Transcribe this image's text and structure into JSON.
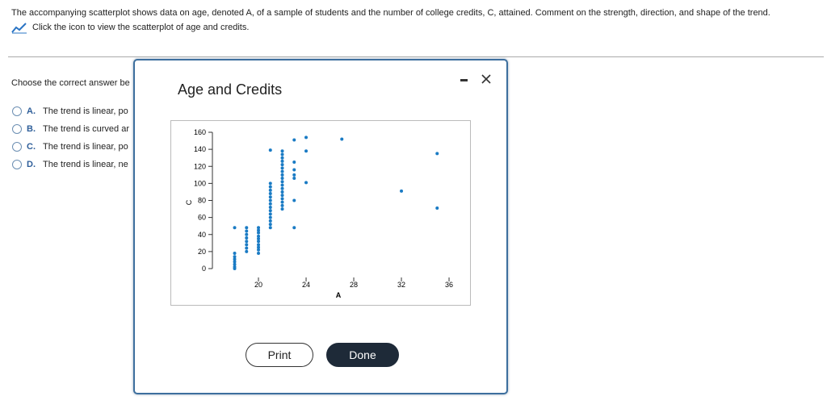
{
  "header": {
    "prompt": "The accompanying scatterplot shows data on age, denoted A, of a sample of students and the number of college credits, C, attained. Comment on the strength, direction, and shape of the trend.",
    "link": "Click the icon to view the scatterplot of age and credits."
  },
  "question": {
    "instruction": "Choose the correct answer be",
    "options": [
      {
        "letter": "A.",
        "text": "The trend is linear, po"
      },
      {
        "letter": "B.",
        "text": "The trend is curved ar"
      },
      {
        "letter": "C.",
        "text": "The trend is linear, po"
      },
      {
        "letter": "D.",
        "text": "The trend is linear, ne"
      }
    ]
  },
  "dialog": {
    "title": "Age and Credits",
    "buttons": [
      "Print",
      "Done"
    ]
  },
  "chart_data": {
    "type": "scatter",
    "xlabel": "A",
    "ylabel": "C",
    "color": "#1a7bc4",
    "x": [
      18,
      18,
      18,
      18,
      18,
      18,
      18,
      18,
      19,
      19,
      19,
      19,
      19,
      19,
      19,
      19,
      20,
      20,
      20,
      20,
      20,
      20,
      20,
      20,
      20,
      20,
      21,
      21,
      21,
      21,
      21,
      21,
      21,
      21,
      21,
      21,
      21,
      21,
      21,
      21,
      21,
      22,
      22,
      22,
      22,
      22,
      22,
      22,
      22,
      22,
      22,
      22,
      22,
      22,
      22,
      22,
      22,
      22,
      22,
      23,
      23,
      23,
      23,
      23,
      23,
      23,
      24,
      24,
      24,
      27,
      32,
      35,
      35
    ],
    "values": [
      0,
      2,
      5,
      8,
      11,
      14,
      18,
      48,
      48,
      44,
      40,
      36,
      32,
      28,
      24,
      20,
      48,
      45,
      42,
      38,
      35,
      32,
      28,
      25,
      22,
      18,
      139,
      100,
      96,
      92,
      88,
      84,
      80,
      76,
      72,
      68,
      64,
      60,
      56,
      52,
      48,
      138,
      134,
      130,
      126,
      122,
      118,
      114,
      110,
      106,
      102,
      98,
      94,
      90,
      86,
      82,
      78,
      74,
      70,
      151,
      125,
      116,
      110,
      106,
      80,
      48,
      154,
      138,
      101,
      152,
      91,
      135,
      71
    ],
    "xlim": [
      16.5,
      36.5
    ],
    "ylim": [
      0,
      160
    ],
    "xticks": [
      20,
      24,
      28,
      32,
      36
    ],
    "yticks": [
      0,
      20,
      40,
      60,
      80,
      100,
      120,
      140,
      160
    ]
  }
}
